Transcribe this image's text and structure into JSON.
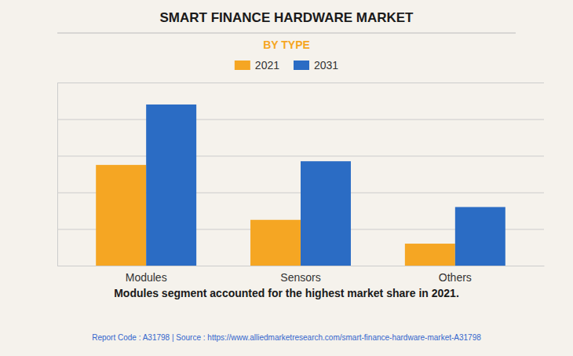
{
  "chart_data": {
    "type": "bar",
    "title": "SMART FINANCE HARDWARE MARKET",
    "subtitle": "BY TYPE",
    "categories": [
      "Modules",
      "Sensors",
      "Others"
    ],
    "series": [
      {
        "name": "2021",
        "color": "#F5A623",
        "values": [
          55,
          25,
          12
        ]
      },
      {
        "name": "2031",
        "color": "#2B6CC4",
        "values": [
          88,
          57,
          32
        ]
      }
    ],
    "ylim": [
      0,
      100
    ],
    "yticks": [
      0,
      20,
      40,
      60,
      80,
      100
    ],
    "grid": true,
    "legend": "top",
    "tick_labels": "x",
    "annotations": [
      "Modules segment accounted for the highest market share in 2021.",
      "Report Code : A31798  |  Source : https://www.alliedmarketresearch.com/smart-finance-hardware-market-A31798"
    ]
  }
}
